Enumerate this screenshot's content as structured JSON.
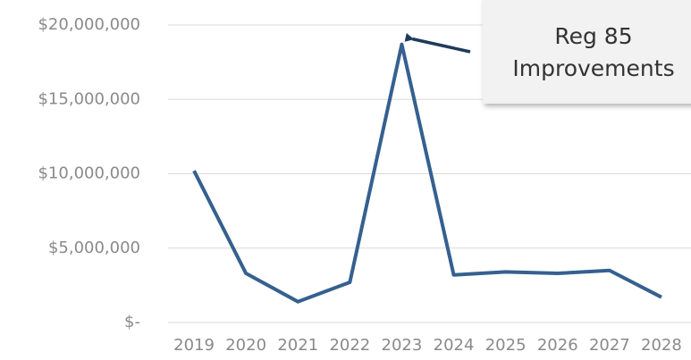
{
  "chart_data": {
    "type": "line",
    "categories": [
      "2019",
      "2020",
      "2021",
      "2022",
      "2023",
      "2024",
      "2025",
      "2026",
      "2027",
      "2028"
    ],
    "values": [
      10200000,
      3300000,
      1400000,
      2700000,
      18700000,
      3200000,
      3400000,
      3300000,
      3500000,
      1700000
    ],
    "color": "#35608f",
    "ylim": [
      0,
      20000000
    ],
    "yticks": [
      {
        "value": 0,
        "label": "$-"
      },
      {
        "value": 5000000,
        "label": "$5,000,000"
      },
      {
        "value": 10000000,
        "label": "$10,000,000"
      },
      {
        "value": 15000000,
        "label": "$15,000,000"
      },
      {
        "value": 20000000,
        "label": "$20,000,000"
      }
    ],
    "grid": true,
    "annotation": {
      "lines": [
        "Reg 85",
        "Improvements"
      ],
      "category": "2023"
    }
  }
}
